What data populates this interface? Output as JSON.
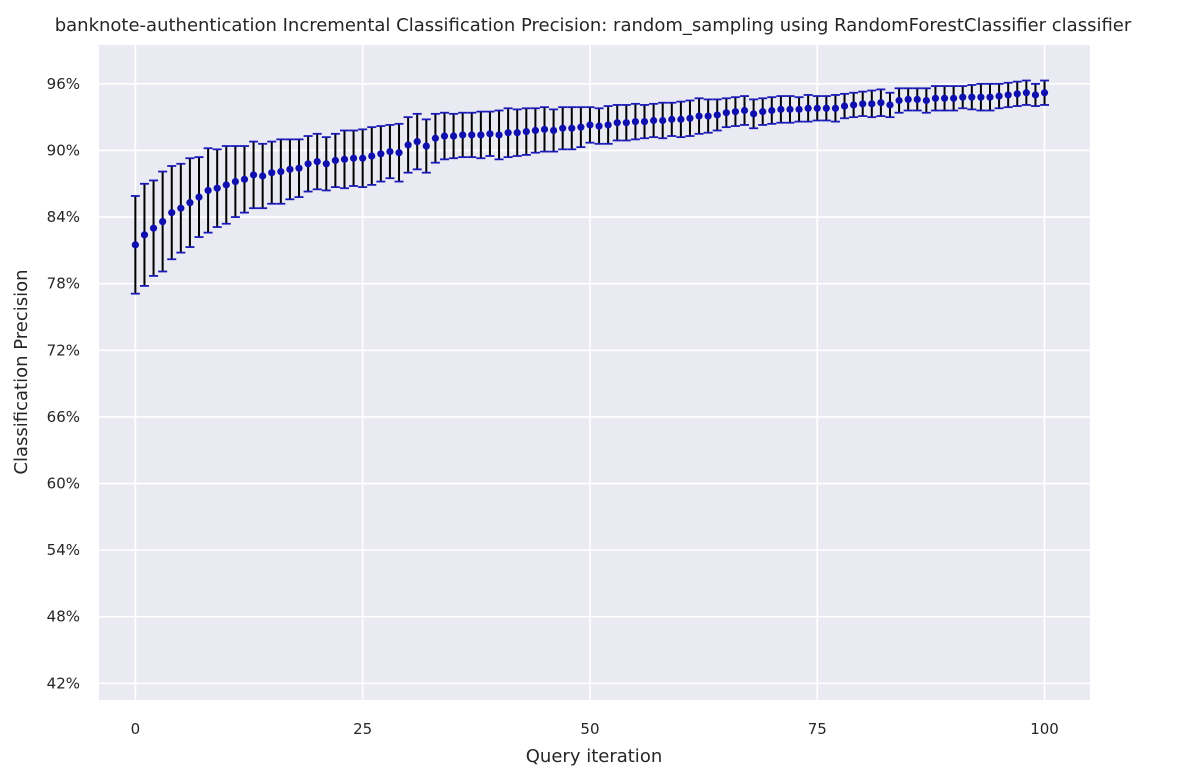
{
  "chart_data": {
    "type": "scatter",
    "title": "banknote-authentication Incremental Classification Precision: random_sampling using RandomForestClassifier classifier",
    "xlabel": "Query iteration",
    "ylabel": "Classification Precision",
    "xlim": [
      -4,
      105
    ],
    "ylim": [
      40.5,
      99.5
    ],
    "x_ticks": [
      0,
      25,
      50,
      75,
      100
    ],
    "x_tick_labels": [
      "0",
      "25",
      "50",
      "75",
      "100"
    ],
    "y_ticks": [
      42,
      48,
      54,
      60,
      66,
      72,
      78,
      84,
      90,
      96
    ],
    "y_tick_labels": [
      "42%",
      "48%",
      "54%",
      "60%",
      "66%",
      "72%",
      "78%",
      "84%",
      "90%",
      "96%"
    ],
    "grid": true,
    "colors": {
      "background": "#eaeaf2",
      "grid": "#ffffff",
      "marker": "#0f0fb0",
      "error_bar": "#000000",
      "cap": "#1a1ab8"
    },
    "x": [
      0,
      1,
      2,
      3,
      4,
      5,
      6,
      7,
      8,
      9,
      10,
      11,
      12,
      13,
      14,
      15,
      16,
      17,
      18,
      19,
      20,
      21,
      22,
      23,
      24,
      25,
      26,
      27,
      28,
      29,
      30,
      31,
      32,
      33,
      34,
      35,
      36,
      37,
      38,
      39,
      40,
      41,
      42,
      43,
      44,
      45,
      46,
      47,
      48,
      49,
      50,
      51,
      52,
      53,
      54,
      55,
      56,
      57,
      58,
      59,
      60,
      61,
      62,
      63,
      64,
      65,
      66,
      67,
      68,
      69,
      70,
      71,
      72,
      73,
      74,
      75,
      76,
      77,
      78,
      79,
      80,
      81,
      82,
      83,
      84,
      85,
      86,
      87,
      88,
      89,
      90,
      91,
      92,
      93,
      94,
      95,
      96,
      97,
      98,
      99,
      100
    ],
    "y": [
      81.5,
      82.4,
      83.0,
      83.6,
      84.4,
      84.8,
      85.3,
      85.8,
      86.4,
      86.6,
      86.9,
      87.2,
      87.4,
      87.8,
      87.7,
      88.0,
      88.1,
      88.3,
      88.4,
      88.8,
      89.0,
      88.8,
      89.1,
      89.2,
      89.3,
      89.3,
      89.5,
      89.7,
      89.9,
      89.8,
      90.5,
      90.8,
      90.4,
      91.1,
      91.3,
      91.3,
      91.4,
      91.4,
      91.4,
      91.5,
      91.4,
      91.6,
      91.6,
      91.7,
      91.8,
      91.9,
      91.8,
      92.0,
      92.0,
      92.1,
      92.3,
      92.2,
      92.3,
      92.5,
      92.5,
      92.6,
      92.6,
      92.7,
      92.7,
      92.8,
      92.8,
      92.9,
      93.1,
      93.1,
      93.2,
      93.4,
      93.5,
      93.6,
      93.3,
      93.5,
      93.6,
      93.7,
      93.7,
      93.7,
      93.8,
      93.8,
      93.8,
      93.8,
      94.0,
      94.1,
      94.2,
      94.2,
      94.3,
      94.1,
      94.5,
      94.6,
      94.6,
      94.5,
      94.7,
      94.7,
      94.7,
      94.8,
      94.8,
      94.8,
      94.8,
      94.9,
      95.0,
      95.1,
      95.2,
      95.0,
      95.2
    ],
    "y_err": [
      4.4,
      4.6,
      4.3,
      4.5,
      4.2,
      4.0,
      4.0,
      3.6,
      3.8,
      3.5,
      3.5,
      3.2,
      3.0,
      3.0,
      2.9,
      2.8,
      2.9,
      2.7,
      2.6,
      2.5,
      2.5,
      2.4,
      2.4,
      2.6,
      2.5,
      2.6,
      2.6,
      2.5,
      2.4,
      2.6,
      2.5,
      2.5,
      2.4,
      2.2,
      2.1,
      2.0,
      2.0,
      2.0,
      2.1,
      2.0,
      2.2,
      2.2,
      2.1,
      2.1,
      2.0,
      2.0,
      1.9,
      1.9,
      1.9,
      1.8,
      1.6,
      1.6,
      1.7,
      1.6,
      1.6,
      1.6,
      1.5,
      1.5,
      1.6,
      1.5,
      1.6,
      1.6,
      1.6,
      1.5,
      1.4,
      1.3,
      1.3,
      1.3,
      1.3,
      1.2,
      1.2,
      1.2,
      1.2,
      1.1,
      1.2,
      1.1,
      1.1,
      1.2,
      1.1,
      1.1,
      1.1,
      1.2,
      1.2,
      1.1,
      1.1,
      1.0,
      1.0,
      1.1,
      1.1,
      1.1,
      1.1,
      1.0,
      1.1,
      1.2,
      1.2,
      1.1,
      1.1,
      1.1,
      1.1,
      1.0,
      1.1
    ]
  }
}
